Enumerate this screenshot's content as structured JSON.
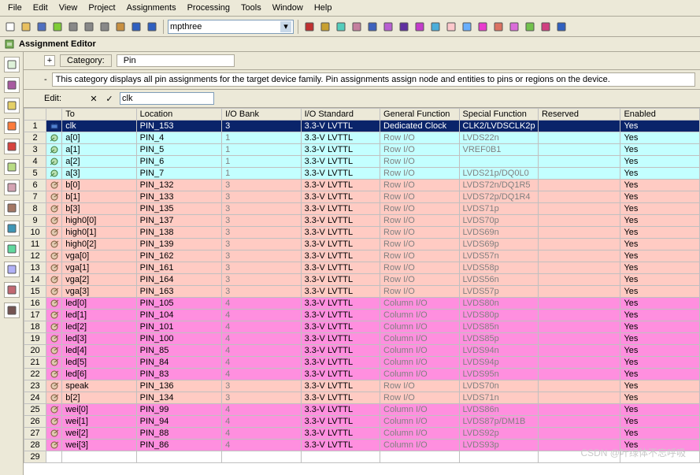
{
  "menu": {
    "items": [
      "File",
      "Edit",
      "View",
      "Project",
      "Assignments",
      "Processing",
      "Tools",
      "Window",
      "Help"
    ]
  },
  "toolbar": {
    "combo_value": "mpthree",
    "icons_left": [
      "new",
      "open",
      "save",
      "saveall",
      "print",
      "cut",
      "copy",
      "paste",
      "undo",
      "redo"
    ],
    "icons_right": [
      "stop",
      "pencil",
      "check-green",
      "check-orange",
      "check-teal",
      "grid",
      "play",
      "play-step",
      "run",
      "loop1",
      "loop2",
      "download",
      "arrow",
      "gears",
      "math",
      "cube",
      "help"
    ]
  },
  "title": "Assignment Editor",
  "category": {
    "label": "Category:",
    "value": "Pin",
    "box": "+"
  },
  "desc": "This category displays all pin assignments for the target device family. Pin assignments assign node and entities to pins or regions on the device.",
  "edit": {
    "label": "Edit:",
    "value": "clk"
  },
  "leftbar_icons": [
    "sel",
    "mag",
    "doc",
    "gear",
    "tree",
    "list",
    "diag",
    "net",
    "plus",
    "link",
    "filter",
    "brush",
    "paren"
  ],
  "columns": [
    "",
    "",
    "To",
    "Location",
    "I/O Bank",
    "I/O Standard",
    "General Function",
    "Special Function",
    "Reserved",
    "Enabled"
  ],
  "rows": [
    {
      "n": 1,
      "grp": "sel",
      "to": "clk",
      "loc": "PIN_153",
      "bank": "3",
      "std": "3.3-V LVTTL",
      "gen": "Dedicated Clock",
      "spec": "CLK2/LVDSCLK2p",
      "res": "",
      "en": "Yes"
    },
    {
      "n": 2,
      "grp": "cyan",
      "to": "a[0]",
      "loc": "PIN_4",
      "bank": "1",
      "std": "3.3-V LVTTL",
      "gen": "Row I/O",
      "spec": "LVDS22n",
      "res": "",
      "en": "Yes"
    },
    {
      "n": 3,
      "grp": "cyan",
      "to": "a[1]",
      "loc": "PIN_5",
      "bank": "1",
      "std": "3.3-V LVTTL",
      "gen": "Row I/O",
      "spec": "VREF0B1",
      "res": "",
      "en": "Yes"
    },
    {
      "n": 4,
      "grp": "cyan",
      "to": "a[2]",
      "loc": "PIN_6",
      "bank": "1",
      "std": "3.3-V LVTTL",
      "gen": "Row I/O",
      "spec": "",
      "res": "",
      "en": "Yes"
    },
    {
      "n": 5,
      "grp": "cyan",
      "to": "a[3]",
      "loc": "PIN_7",
      "bank": "1",
      "std": "3.3-V LVTTL",
      "gen": "Row I/O",
      "spec": "LVDS21p/DQ0L0",
      "res": "",
      "en": "Yes"
    },
    {
      "n": 6,
      "grp": "pink",
      "to": "b[0]",
      "loc": "PIN_132",
      "bank": "3",
      "std": "3.3-V LVTTL",
      "gen": "Row I/O",
      "spec": "LVDS72n/DQ1R5",
      "res": "",
      "en": "Yes"
    },
    {
      "n": 7,
      "grp": "pink",
      "to": "b[1]",
      "loc": "PIN_133",
      "bank": "3",
      "std": "3.3-V LVTTL",
      "gen": "Row I/O",
      "spec": "LVDS72p/DQ1R4",
      "res": "",
      "en": "Yes"
    },
    {
      "n": 8,
      "grp": "pink",
      "to": "b[3]",
      "loc": "PIN_135",
      "bank": "3",
      "std": "3.3-V LVTTL",
      "gen": "Row I/O",
      "spec": "LVDS71p",
      "res": "",
      "en": "Yes"
    },
    {
      "n": 9,
      "grp": "pink",
      "to": "high0[0]",
      "loc": "PIN_137",
      "bank": "3",
      "std": "3.3-V LVTTL",
      "gen": "Row I/O",
      "spec": "LVDS70p",
      "res": "",
      "en": "Yes"
    },
    {
      "n": 10,
      "grp": "pink",
      "to": "high0[1]",
      "loc": "PIN_138",
      "bank": "3",
      "std": "3.3-V LVTTL",
      "gen": "Row I/O",
      "spec": "LVDS69n",
      "res": "",
      "en": "Yes"
    },
    {
      "n": 11,
      "grp": "pink",
      "to": "high0[2]",
      "loc": "PIN_139",
      "bank": "3",
      "std": "3.3-V LVTTL",
      "gen": "Row I/O",
      "spec": "LVDS69p",
      "res": "",
      "en": "Yes"
    },
    {
      "n": 12,
      "grp": "pink",
      "to": "vga[0]",
      "loc": "PIN_162",
      "bank": "3",
      "std": "3.3-V LVTTL",
      "gen": "Row I/O",
      "spec": "LVDS57n",
      "res": "",
      "en": "Yes"
    },
    {
      "n": 13,
      "grp": "pink",
      "to": "vga[1]",
      "loc": "PIN_161",
      "bank": "3",
      "std": "3.3-V LVTTL",
      "gen": "Row I/O",
      "spec": "LVDS58p",
      "res": "",
      "en": "Yes"
    },
    {
      "n": 14,
      "grp": "pink",
      "to": "vga[2]",
      "loc": "PIN_164",
      "bank": "3",
      "std": "3.3-V LVTTL",
      "gen": "Row I/O",
      "spec": "LVDS56n",
      "res": "",
      "en": "Yes"
    },
    {
      "n": 15,
      "grp": "pink",
      "to": "vga[3]",
      "loc": "PIN_163",
      "bank": "3",
      "std": "3.3-V LVTTL",
      "gen": "Row I/O",
      "spec": "LVDS57p",
      "res": "",
      "en": "Yes"
    },
    {
      "n": 16,
      "grp": "mag",
      "to": "led[0]",
      "loc": "PIN_105",
      "bank": "4",
      "std": "3.3-V LVTTL",
      "gen": "Column I/O",
      "spec": "LVDS80n",
      "res": "",
      "en": "Yes"
    },
    {
      "n": 17,
      "grp": "mag",
      "to": "led[1]",
      "loc": "PIN_104",
      "bank": "4",
      "std": "3.3-V LVTTL",
      "gen": "Column I/O",
      "spec": "LVDS80p",
      "res": "",
      "en": "Yes"
    },
    {
      "n": 18,
      "grp": "mag",
      "to": "led[2]",
      "loc": "PIN_101",
      "bank": "4",
      "std": "3.3-V LVTTL",
      "gen": "Column I/O",
      "spec": "LVDS85n",
      "res": "",
      "en": "Yes"
    },
    {
      "n": 19,
      "grp": "mag",
      "to": "led[3]",
      "loc": "PIN_100",
      "bank": "4",
      "std": "3.3-V LVTTL",
      "gen": "Column I/O",
      "spec": "LVDS85p",
      "res": "",
      "en": "Yes"
    },
    {
      "n": 20,
      "grp": "mag",
      "to": "led[4]",
      "loc": "PIN_85",
      "bank": "4",
      "std": "3.3-V LVTTL",
      "gen": "Column I/O",
      "spec": "LVDS94n",
      "res": "",
      "en": "Yes"
    },
    {
      "n": 21,
      "grp": "mag",
      "to": "led[5]",
      "loc": "PIN_84",
      "bank": "4",
      "std": "3.3-V LVTTL",
      "gen": "Column I/O",
      "spec": "LVDS94p",
      "res": "",
      "en": "Yes"
    },
    {
      "n": 22,
      "grp": "mag",
      "to": "led[6]",
      "loc": "PIN_83",
      "bank": "4",
      "std": "3.3-V LVTTL",
      "gen": "Column I/O",
      "spec": "LVDS95n",
      "res": "",
      "en": "Yes"
    },
    {
      "n": 23,
      "grp": "pink",
      "to": "speak",
      "loc": "PIN_136",
      "bank": "3",
      "std": "3.3-V LVTTL",
      "gen": "Row I/O",
      "spec": "LVDS70n",
      "res": "",
      "en": "Yes"
    },
    {
      "n": 24,
      "grp": "pink",
      "to": "b[2]",
      "loc": "PIN_134",
      "bank": "3",
      "std": "3.3-V LVTTL",
      "gen": "Row I/O",
      "spec": "LVDS71n",
      "res": "",
      "en": "Yes"
    },
    {
      "n": 25,
      "grp": "mag",
      "to": "wei[0]",
      "loc": "PIN_99",
      "bank": "4",
      "std": "3.3-V LVTTL",
      "gen": "Column I/O",
      "spec": "LVDS86n",
      "res": "",
      "en": "Yes"
    },
    {
      "n": 26,
      "grp": "mag",
      "to": "wei[1]",
      "loc": "PIN_94",
      "bank": "4",
      "std": "3.3-V LVTTL",
      "gen": "Column I/O",
      "spec": "LVDS87p/DM1B",
      "res": "",
      "en": "Yes"
    },
    {
      "n": 27,
      "grp": "mag",
      "to": "wei[2]",
      "loc": "PIN_88",
      "bank": "4",
      "std": "3.3-V LVTTL",
      "gen": "Column I/O",
      "spec": "LVDS92p",
      "res": "",
      "en": "Yes"
    },
    {
      "n": 28,
      "grp": "mag",
      "to": "wei[3]",
      "loc": "PIN_86",
      "bank": "4",
      "std": "3.3-V LVTTL",
      "gen": "Column I/O",
      "spec": "LVDS93p",
      "res": "",
      "en": "Yes"
    }
  ],
  "watermark": "CSDN @叶绿体不忘呼吸"
}
